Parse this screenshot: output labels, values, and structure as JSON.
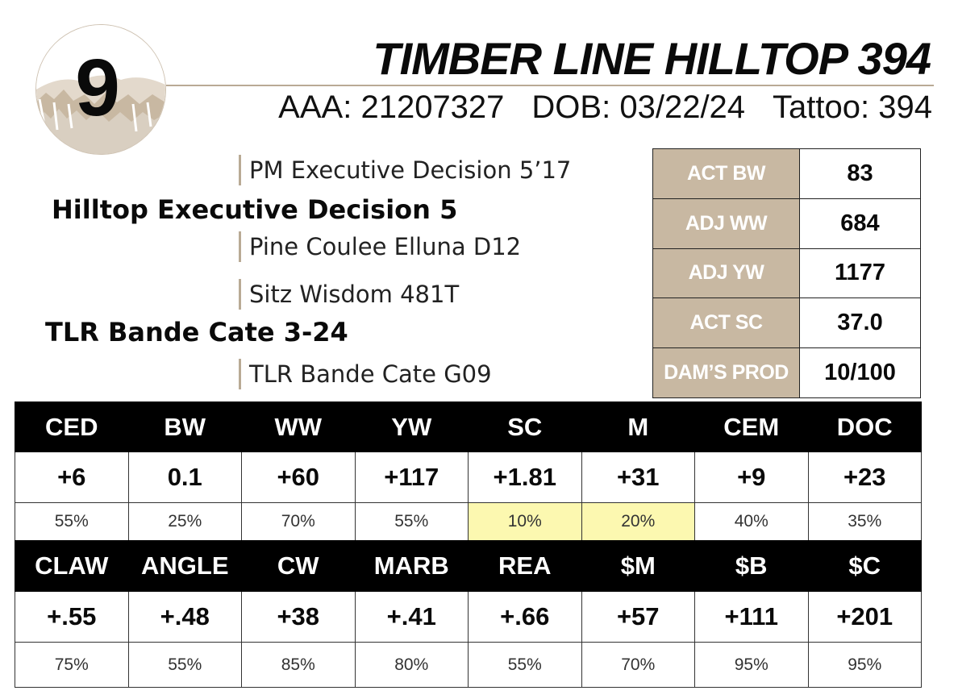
{
  "lot": "9",
  "animal_name": "TIMBER LINE HILLTOP 394",
  "ids": [
    {
      "label": "AAA:",
      "value": "21207327"
    },
    {
      "label": "DOB:",
      "value": "03/22/24"
    },
    {
      "label": "Tattoo:",
      "value": "394"
    }
  ],
  "pedigree": {
    "sire": "Hilltop Executive Decision 5",
    "sire_sire": "PM Executive Decision 5’17",
    "sire_dam": "Pine Coulee Elluna D12",
    "dam": "TLR Bande Cate 3-24",
    "dam_sire": "Sitz Wisdom 481T",
    "dam_dam": "TLR Bande Cate G09"
  },
  "measurements": [
    {
      "label": "ACT BW",
      "value": "83"
    },
    {
      "label": "ADJ WW",
      "value": "684"
    },
    {
      "label": "ADJ YW",
      "value": "1177"
    },
    {
      "label": "ACT SC",
      "value": "37.0"
    },
    {
      "label": "DAM’S PROD",
      "value": "10/100"
    }
  ],
  "epd_row1": [
    {
      "trait": "CED",
      "value": "+6",
      "acc": "55%",
      "highlight": false
    },
    {
      "trait": "BW",
      "value": "0.1",
      "acc": "25%",
      "highlight": false
    },
    {
      "trait": "WW",
      "value": "+60",
      "acc": "70%",
      "highlight": false
    },
    {
      "trait": "YW",
      "value": "+117",
      "acc": "55%",
      "highlight": false
    },
    {
      "trait": "SC",
      "value": "+1.81",
      "acc": "10%",
      "highlight": true
    },
    {
      "trait": "M",
      "value": "+31",
      "acc": "20%",
      "highlight": true
    },
    {
      "trait": "CEM",
      "value": "+9",
      "acc": "40%",
      "highlight": false
    },
    {
      "trait": "DOC",
      "value": "+23",
      "acc": "35%",
      "highlight": false
    }
  ],
  "epd_row2": [
    {
      "trait": "CLAW",
      "value": "+.55",
      "acc": "75%",
      "highlight": false
    },
    {
      "trait": "ANGLE",
      "value": "+.48",
      "acc": "55%",
      "highlight": false
    },
    {
      "trait": "CW",
      "value": "+38",
      "acc": "85%",
      "highlight": false
    },
    {
      "trait": "MARB",
      "value": "+.41",
      "acc": "80%",
      "highlight": false
    },
    {
      "trait": "REA",
      "value": "+.66",
      "acc": "55%",
      "highlight": false
    },
    {
      "trait": "$M",
      "value": "+57",
      "acc": "70%",
      "highlight": false
    },
    {
      "trait": "$B",
      "value": "+111",
      "acc": "95%",
      "highlight": false
    },
    {
      "trait": "$C",
      "value": "+201",
      "acc": "95%",
      "highlight": false
    }
  ],
  "colors": {
    "tan": "#c8b8a2",
    "rule": "#b9aa95",
    "highlight": "#fcf8b0",
    "header_bg": "#000000"
  }
}
